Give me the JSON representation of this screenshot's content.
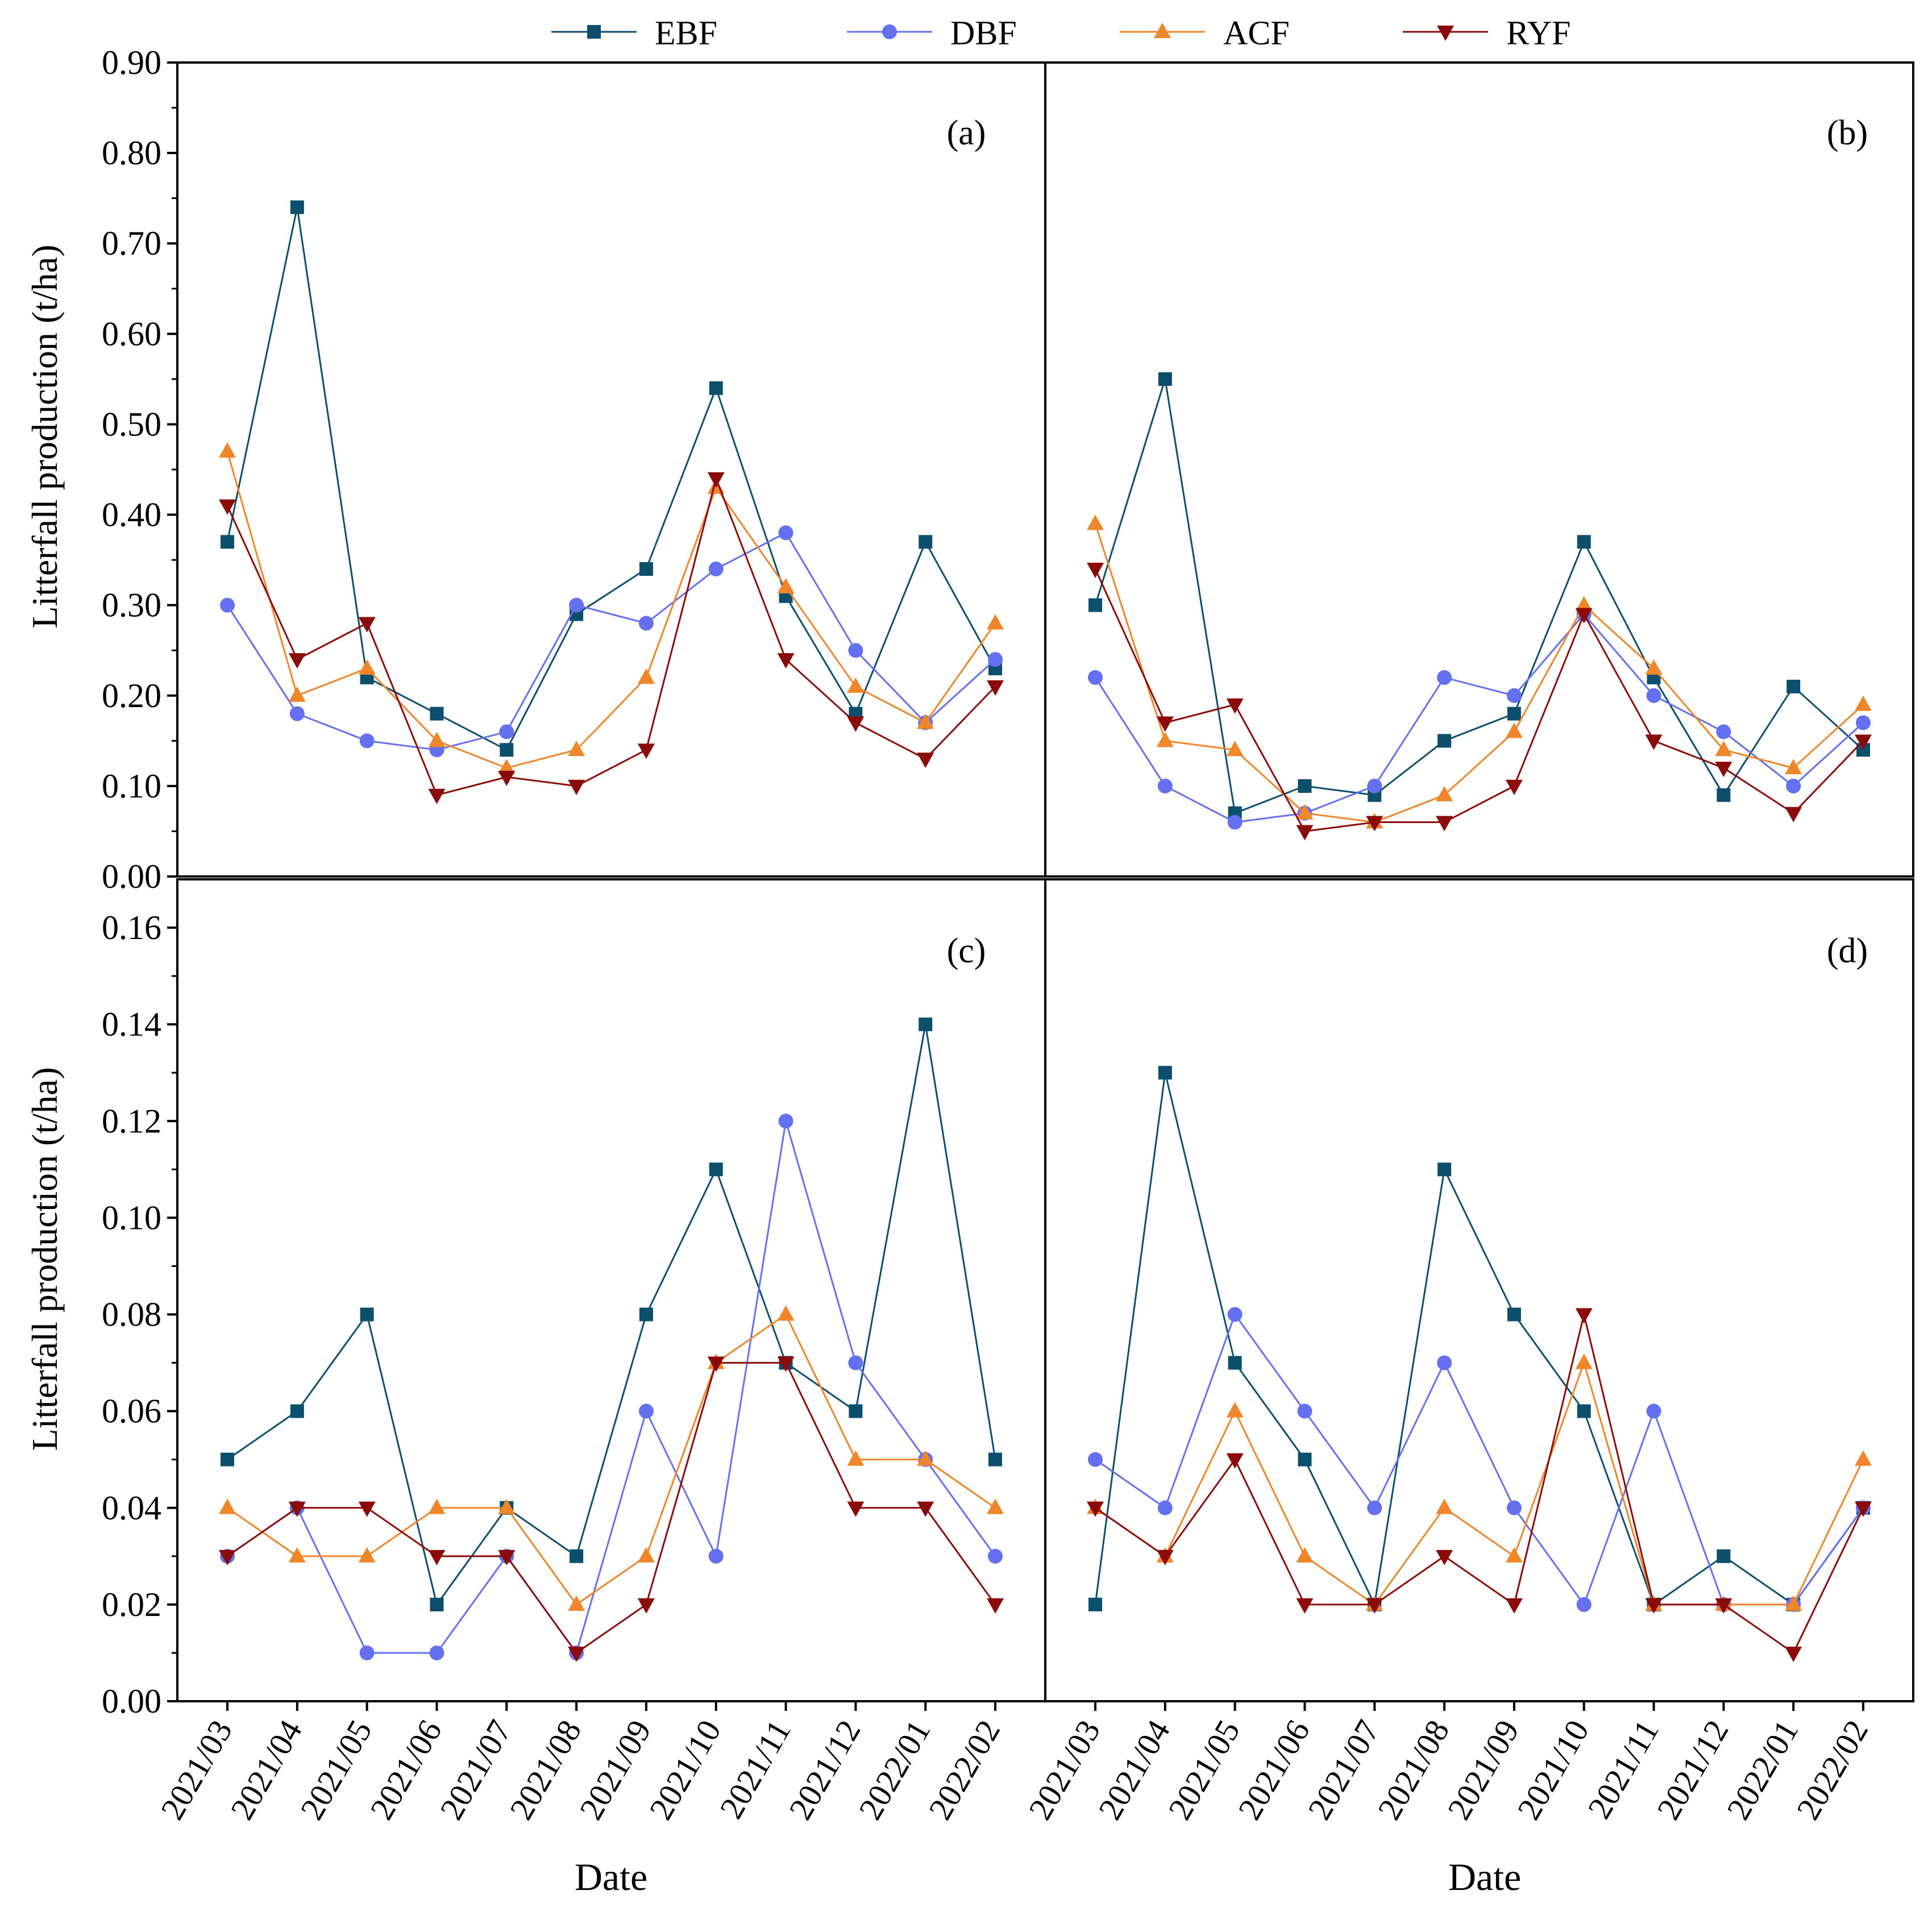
{
  "chart_data": {
    "type": "line",
    "ylabel": "Litterfall production (t/ha)",
    "xlabel": "Date",
    "categories": [
      "2021/03",
      "2021/04",
      "2021/05",
      "2021/06",
      "2021/07",
      "2021/08",
      "2021/09",
      "2021/10",
      "2021/11",
      "2021/12",
      "2022/01",
      "2022/02"
    ],
    "legend": [
      {
        "name": "EBF",
        "color": "#0b4f6c",
        "marker": "square"
      },
      {
        "name": "DBF",
        "color": "#6470f0",
        "marker": "circle"
      },
      {
        "name": "ACF",
        "color": "#f0862a",
        "marker": "triangle-up"
      },
      {
        "name": "RYF",
        "color": "#8b0a0a",
        "marker": "triangle-down"
      }
    ],
    "panels": [
      {
        "label": "(a)",
        "ylim": [
          0,
          0.9
        ],
        "yticks": [
          "0.00",
          "0.10",
          "0.20",
          "0.30",
          "0.40",
          "0.50",
          "0.60",
          "0.70",
          "0.80",
          "0.90"
        ],
        "series": [
          {
            "name": "EBF",
            "values": [
              0.37,
              0.74,
              0.22,
              0.18,
              0.14,
              0.29,
              0.34,
              0.54,
              0.31,
              0.18,
              0.37,
              0.23
            ]
          },
          {
            "name": "DBF",
            "values": [
              0.3,
              0.18,
              0.15,
              0.14,
              0.16,
              0.3,
              0.28,
              0.34,
              0.38,
              0.25,
              0.17,
              0.24
            ]
          },
          {
            "name": "ACF",
            "values": [
              0.47,
              0.2,
              0.23,
              0.15,
              0.12,
              0.14,
              0.22,
              0.43,
              0.32,
              0.21,
              0.17,
              0.28
            ]
          },
          {
            "name": "RYF",
            "values": [
              0.41,
              0.24,
              0.28,
              0.09,
              0.11,
              0.1,
              0.14,
              0.44,
              0.24,
              0.17,
              0.13,
              0.21
            ]
          }
        ]
      },
      {
        "label": "(b)",
        "ylim": [
          0,
          0.9
        ],
        "yticks": [],
        "series": [
          {
            "name": "EBF",
            "values": [
              0.3,
              0.55,
              0.07,
              0.1,
              0.09,
              0.15,
              0.18,
              0.37,
              0.22,
              0.09,
              0.21,
              0.14
            ]
          },
          {
            "name": "DBF",
            "values": [
              0.22,
              0.1,
              0.06,
              0.07,
              0.1,
              0.22,
              0.2,
              0.29,
              0.2,
              0.16,
              0.1,
              0.17
            ]
          },
          {
            "name": "ACF",
            "values": [
              0.39,
              0.15,
              0.14,
              0.07,
              0.06,
              0.09,
              0.16,
              0.3,
              0.23,
              0.14,
              0.12,
              0.19
            ]
          },
          {
            "name": "RYF",
            "values": [
              0.34,
              0.17,
              0.19,
              0.05,
              0.06,
              0.06,
              0.1,
              0.29,
              0.15,
              0.12,
              0.07,
              0.15
            ]
          }
        ]
      },
      {
        "label": "(c)",
        "ylim": [
          0,
          0.17
        ],
        "yticks": [
          "0.00",
          "0.02",
          "0.04",
          "0.06",
          "0.08",
          "0.10",
          "0.12",
          "0.14",
          "0.16"
        ],
        "series": [
          {
            "name": "EBF",
            "values": [
              0.05,
              0.06,
              0.08,
              0.02,
              0.04,
              0.03,
              0.08,
              0.11,
              0.07,
              0.06,
              0.14,
              0.05
            ]
          },
          {
            "name": "DBF",
            "values": [
              0.03,
              0.04,
              0.01,
              0.01,
              0.03,
              0.01,
              0.06,
              0.03,
              0.12,
              0.07,
              0.05,
              0.03
            ]
          },
          {
            "name": "ACF",
            "values": [
              0.04,
              0.03,
              0.03,
              0.04,
              0.04,
              0.02,
              0.03,
              0.07,
              0.08,
              0.05,
              0.05,
              0.04
            ]
          },
          {
            "name": "RYF",
            "values": [
              0.03,
              0.04,
              0.04,
              0.03,
              0.03,
              0.01,
              0.02,
              0.07,
              0.07,
              0.04,
              0.04,
              0.02
            ]
          }
        ]
      },
      {
        "label": "(d)",
        "ylim": [
          0,
          0.17
        ],
        "yticks": [],
        "series": [
          {
            "name": "EBF",
            "values": [
              0.02,
              0.13,
              0.07,
              0.05,
              0.02,
              0.11,
              0.08,
              0.06,
              0.02,
              0.03,
              0.02,
              0.04
            ]
          },
          {
            "name": "DBF",
            "values": [
              0.05,
              0.04,
              0.08,
              0.06,
              0.04,
              0.07,
              0.04,
              0.02,
              0.06,
              0.02,
              0.02,
              0.04
            ]
          },
          {
            "name": "ACF",
            "values": [
              0.04,
              0.03,
              0.06,
              0.03,
              0.02,
              0.04,
              0.03,
              0.07,
              0.02,
              0.02,
              0.02,
              0.05
            ]
          },
          {
            "name": "RYF",
            "values": [
              0.04,
              0.03,
              0.05,
              0.02,
              0.02,
              0.03,
              0.02,
              0.08,
              0.02,
              0.02,
              0.01,
              0.04
            ]
          }
        ]
      }
    ]
  }
}
